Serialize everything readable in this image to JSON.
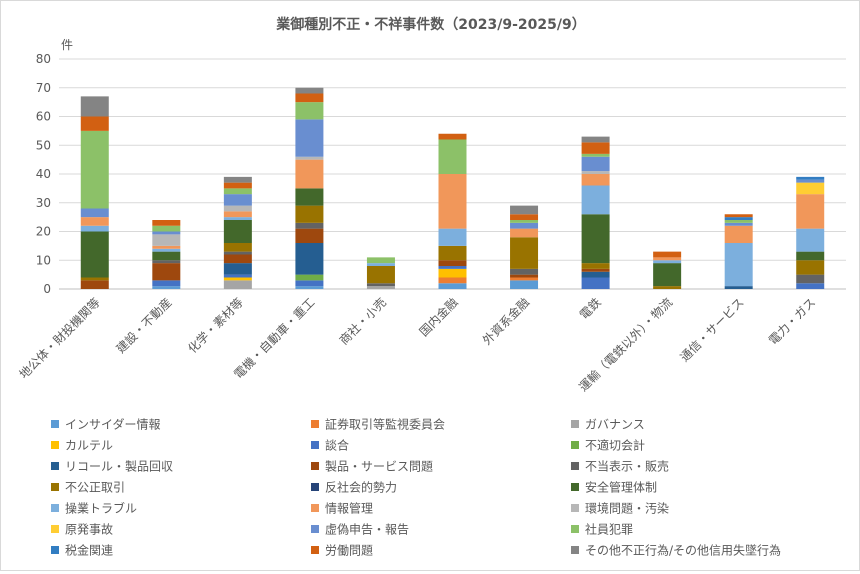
{
  "chart_data": {
    "type": "bar",
    "stacked": true,
    "title": "業御種別不正・不祥事件数（2023/9-2025/9）",
    "ylabel": "件",
    "ylim": [
      0,
      80
    ],
    "yticks": [
      0,
      10,
      20,
      30,
      40,
      50,
      60,
      70,
      80
    ],
    "grid": true,
    "legend_position": "bottom",
    "categories": [
      "地公体・財投機関等",
      "建設・不動産",
      "化学・素材等",
      "電機・自動車・重工",
      "商社・小売",
      "国内金融",
      "外資系金融",
      "電鉄",
      "運輸（電鉄以外）・物流",
      "通信・サービス",
      "電力・ガス"
    ],
    "series": [
      {
        "name": "インサイダー情報",
        "color": "#5B9BD5",
        "values": [
          0,
          1,
          0,
          1,
          0,
          2,
          3,
          0,
          0,
          0,
          0
        ]
      },
      {
        "name": "証券取引等監視委員会",
        "color": "#ED7D31",
        "values": [
          0,
          0,
          0,
          0,
          0,
          2,
          1,
          0,
          0,
          0,
          0
        ]
      },
      {
        "name": "ガバナンス",
        "color": "#A5A5A5",
        "values": [
          0,
          0,
          3,
          0,
          1,
          0,
          0,
          0,
          0,
          0,
          0
        ]
      },
      {
        "name": "カルテル",
        "color": "#FFC000",
        "values": [
          0,
          0,
          1,
          0,
          0,
          3,
          0,
          0,
          0,
          0,
          0
        ]
      },
      {
        "name": "談合",
        "color": "#4472C4",
        "values": [
          0,
          2,
          1,
          2,
          0,
          1,
          0,
          4,
          0,
          0,
          2
        ]
      },
      {
        "name": "不適切会計",
        "color": "#70AD47",
        "values": [
          0,
          0,
          0,
          2,
          0,
          0,
          0,
          0,
          0,
          0,
          0
        ]
      },
      {
        "name": "リコール・製品回収",
        "color": "#255E91",
        "values": [
          0,
          0,
          4,
          11,
          0,
          0,
          0,
          2,
          0,
          1,
          0
        ]
      },
      {
        "name": "製品・サービス問題",
        "color": "#9E480E",
        "values": [
          3,
          6,
          3,
          5,
          0,
          2,
          1,
          1,
          0,
          0,
          0
        ]
      },
      {
        "name": "不当表示・販売",
        "color": "#636363",
        "values": [
          0,
          1,
          1,
          2,
          1,
          0,
          2,
          0,
          0,
          0,
          3
        ]
      },
      {
        "name": "不公正取引",
        "color": "#997300",
        "values": [
          1,
          0,
          3,
          6,
          6,
          5,
          11,
          2,
          1,
          0,
          5
        ]
      },
      {
        "name": "反社会的勢力",
        "color": "#264478",
        "values": [
          0,
          0,
          0,
          0,
          0,
          0,
          0,
          0,
          0,
          0,
          0
        ]
      },
      {
        "name": "安全管理体制",
        "color": "#43682B",
        "values": [
          16,
          3,
          8,
          6,
          0,
          0,
          0,
          17,
          8,
          0,
          3
        ]
      },
      {
        "name": "操業トラブル",
        "color": "#7CAFDD",
        "values": [
          2,
          1,
          1,
          0,
          1,
          6,
          0,
          10,
          1,
          15,
          8
        ]
      },
      {
        "name": "情報管理",
        "color": "#F1975A",
        "values": [
          3,
          1,
          2,
          10,
          0,
          19,
          3,
          4,
          1,
          6,
          12
        ]
      },
      {
        "name": "環境問題・汚染",
        "color": "#B7B7B7",
        "values": [
          0,
          4,
          2,
          1,
          0,
          0,
          0,
          1,
          0,
          0,
          0
        ]
      },
      {
        "name": "原発事故",
        "color": "#FFCD33",
        "values": [
          0,
          0,
          0,
          0,
          0,
          0,
          0,
          0,
          0,
          0,
          4
        ]
      },
      {
        "name": "虚偽申告・報告",
        "color": "#698ED0",
        "values": [
          3,
          1,
          4,
          13,
          0,
          0,
          2,
          5,
          0,
          1,
          1
        ]
      },
      {
        "name": "社員犯罪",
        "color": "#8CC168",
        "values": [
          27,
          2,
          2,
          6,
          2,
          12,
          1,
          1,
          0,
          1,
          0
        ]
      },
      {
        "name": "税金関連",
        "color": "#327DC2",
        "values": [
          0,
          0,
          0,
          0,
          0,
          0,
          0,
          0,
          0,
          1,
          1
        ]
      },
      {
        "name": "労働問題",
        "color": "#D26012",
        "values": [
          5,
          2,
          2,
          3,
          0,
          2,
          2,
          4,
          2,
          1,
          0
        ]
      },
      {
        "name": "その他不正行為/その他信用失墜行為",
        "color": "#848484",
        "values": [
          7,
          0,
          2,
          2,
          0,
          0,
          3,
          2,
          0,
          0,
          0
        ]
      }
    ]
  }
}
